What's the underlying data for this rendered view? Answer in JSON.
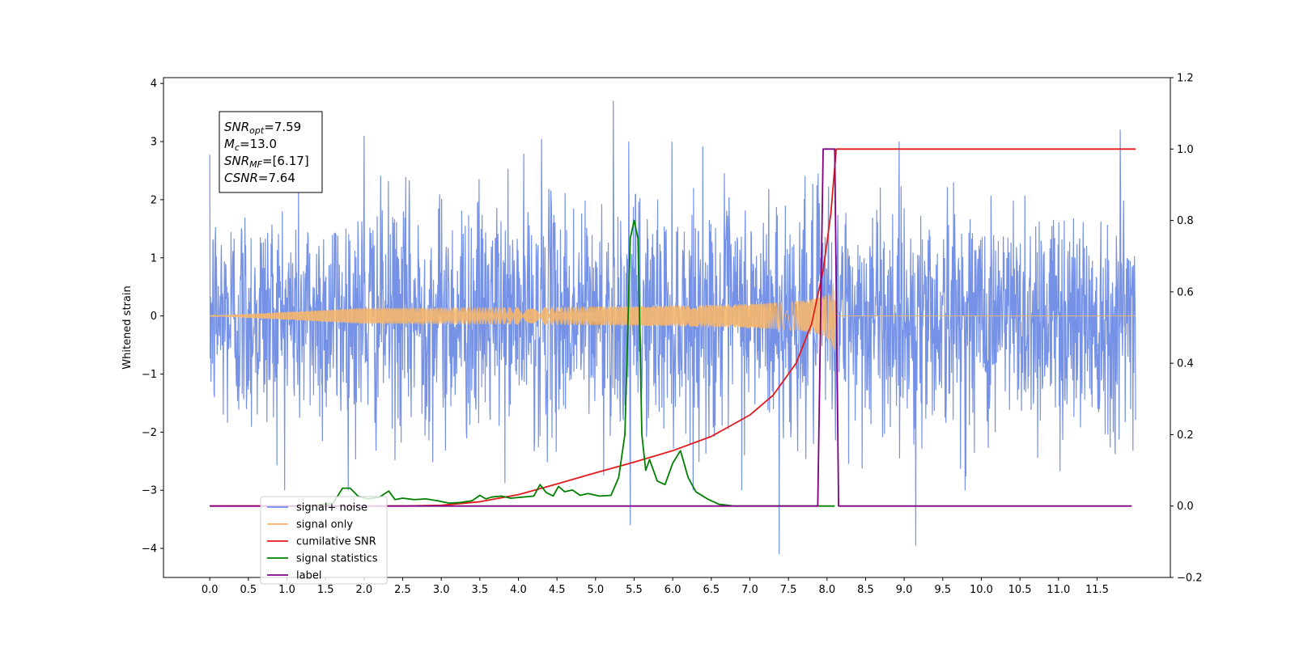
{
  "chart_data": {
    "type": "line",
    "xlim": [
      -0.6,
      12.45
    ],
    "ylim_left": [
      -4.5,
      4.1
    ],
    "ylim_right": [
      -0.2,
      1.2
    ],
    "ylabel_left": "Whitened strain",
    "x_ticks": [
      "0.0",
      "0.5",
      "1.0",
      "1.5",
      "2.0",
      "2.5",
      "3.0",
      "3.5",
      "4.0",
      "4.5",
      "5.0",
      "5.5",
      "6.0",
      "6.5",
      "7.0",
      "7.5",
      "8.0",
      "8.5",
      "9.0",
      "9.5",
      "10.0",
      "10.5",
      "11.0",
      "11.5"
    ],
    "y_ticks_left": [
      "−4",
      "−3",
      "−2",
      "−1",
      "0",
      "1",
      "2",
      "3",
      "4"
    ],
    "y_ticks_right": [
      "−0.2",
      "0.0",
      "0.2",
      "0.4",
      "0.6",
      "0.8",
      "1.0",
      "1.2"
    ],
    "annotation": {
      "lines": [
        {
          "base": "SNR",
          "sub": "opt",
          "value": "=7.59"
        },
        {
          "base": "M",
          "sub": "c",
          "value": "=13.0"
        },
        {
          "base": "SNR",
          "sub": "MF",
          "value": "=[6.17]"
        },
        {
          "base": "CSNR",
          "sub": "",
          "value": "=7.64"
        }
      ]
    },
    "legend": {
      "placement": "lower-left",
      "entries": [
        "signal+ noise",
        "signal only",
        "cumilative SNR",
        "signal statistics",
        "label"
      ]
    },
    "series": [
      {
        "name": "signal+ noise",
        "axis": "left",
        "color": "#6f8ce6",
        "kind": "noise",
        "x_start": 0.0,
        "x_end": 12.0,
        "std": 1.0,
        "spikes": [
          [
            5.23,
            3.7
          ],
          [
            5.45,
            -3.6
          ],
          [
            7.38,
            -4.1
          ],
          [
            9.15,
            -3.95
          ],
          [
            11.8,
            3.2
          ],
          [
            2.0,
            3.1
          ],
          [
            4.3,
            3.05
          ]
        ]
      },
      {
        "name": "signal only",
        "axis": "left",
        "color": "#f5b66b",
        "kind": "chirp",
        "x_start": 0.0,
        "x_end": 12.0,
        "merger": 8.1,
        "peak_amplitude": 0.85
      },
      {
        "name": "cumilative SNR",
        "axis": "right",
        "color": "#e31a1c",
        "x": [
          0.0,
          2.5,
          3.0,
          3.5,
          4.0,
          4.5,
          5.0,
          5.5,
          6.0,
          6.5,
          7.0,
          7.3,
          7.6,
          7.8,
          7.95,
          8.05,
          8.1,
          8.12,
          12.0
        ],
        "values": [
          0.0,
          0.0,
          0.002,
          0.012,
          0.032,
          0.062,
          0.093,
          0.123,
          0.155,
          0.195,
          0.255,
          0.31,
          0.4,
          0.51,
          0.66,
          0.82,
          0.95,
          1.0,
          1.0
        ]
      },
      {
        "name": "signal statistics",
        "axis": "right",
        "color": "#008000",
        "x": [
          1.3,
          1.6,
          1.72,
          1.82,
          1.92,
          2.05,
          2.2,
          2.32,
          2.4,
          2.5,
          2.65,
          2.8,
          2.95,
          3.1,
          3.25,
          3.4,
          3.5,
          3.58,
          3.65,
          3.78,
          3.9,
          4.05,
          4.2,
          4.28,
          4.36,
          4.45,
          4.52,
          4.6,
          4.7,
          4.8,
          4.9,
          5.05,
          5.2,
          5.3,
          5.38,
          5.45,
          5.5,
          5.55,
          5.6,
          5.65,
          5.7,
          5.8,
          5.9,
          6.0,
          6.1,
          6.2,
          6.3,
          6.45,
          6.6,
          6.8,
          7.0,
          7.4,
          7.8,
          8.1
        ],
        "values": [
          0.0,
          0.008,
          0.05,
          0.05,
          0.028,
          0.02,
          0.025,
          0.042,
          0.018,
          0.022,
          0.018,
          0.02,
          0.015,
          0.008,
          0.01,
          0.015,
          0.03,
          0.02,
          0.025,
          0.028,
          0.022,
          0.025,
          0.028,
          0.06,
          0.038,
          0.028,
          0.055,
          0.04,
          0.045,
          0.03,
          0.035,
          0.028,
          0.03,
          0.08,
          0.2,
          0.75,
          0.8,
          0.75,
          0.2,
          0.1,
          0.13,
          0.07,
          0.06,
          0.12,
          0.155,
          0.08,
          0.04,
          0.02,
          0.005,
          0.0,
          0.0,
          0.0,
          0.0,
          0.0
        ]
      },
      {
        "name": "label",
        "axis": "right",
        "color": "#800080",
        "x": [
          0.0,
          7.88,
          7.95,
          8.05,
          8.1,
          8.15,
          11.95
        ],
        "values": [
          0.0,
          0.0,
          1.0,
          1.0,
          1.0,
          0.0,
          0.0
        ]
      }
    ]
  }
}
